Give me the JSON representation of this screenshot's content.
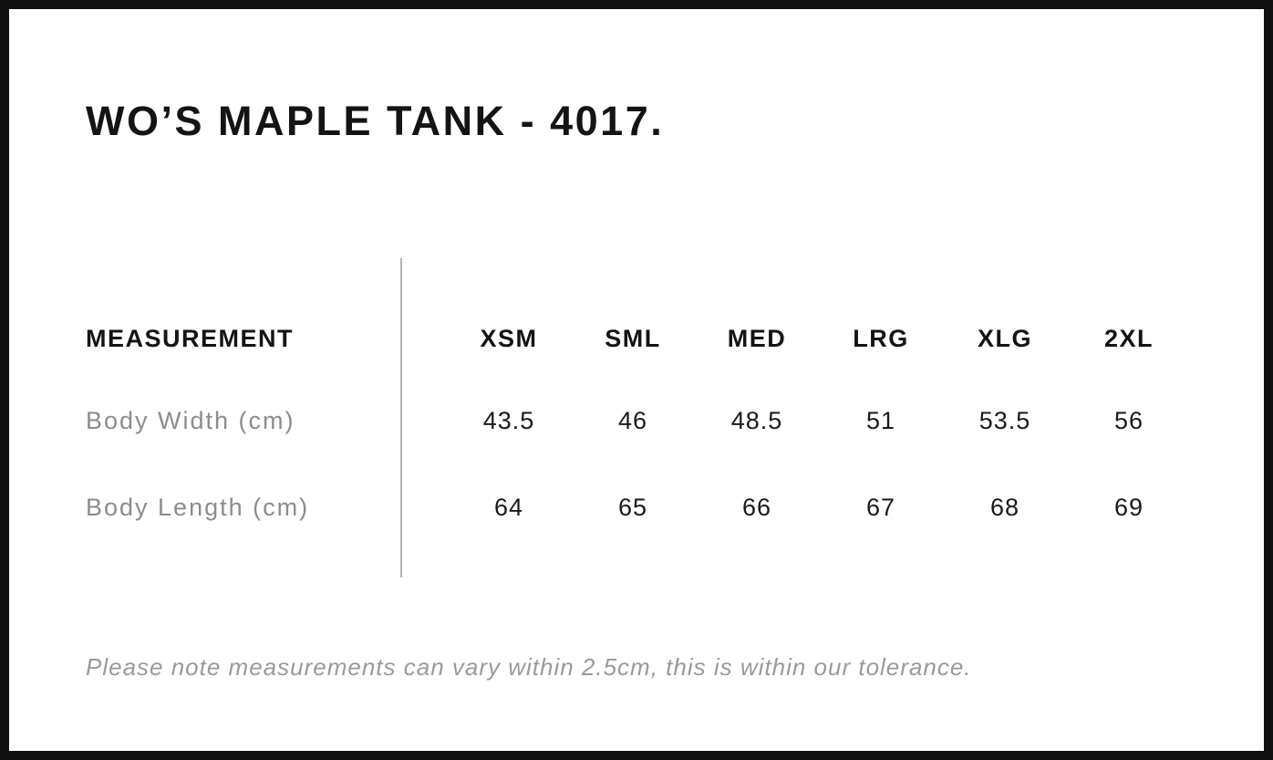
{
  "title": "WO’S MAPLE TANK - 4017.",
  "table": {
    "measurement_header": "MEASUREMENT",
    "size_headers": [
      "XSM",
      "SML",
      "MED",
      "LRG",
      "XLG",
      "2XL"
    ],
    "rows": [
      {
        "label": "Body Width (cm)",
        "values": [
          "43.5",
          "46",
          "48.5",
          "51",
          "53.5",
          "56"
        ]
      },
      {
        "label": "Body Length (cm)",
        "values": [
          "64",
          "65",
          "66",
          "67",
          "68",
          "69"
        ]
      }
    ]
  },
  "note": "Please note measurements can vary within 2.5cm, this is within our tolerance.",
  "colors": {
    "frame_border": "#101010",
    "heading_text": "#141414",
    "value_text": "#1a1a1a",
    "label_text": "#8c8c8c",
    "note_text": "#9a9a9a",
    "divider": "#b3b3b3",
    "background": "#ffffff"
  },
  "chart_data": {
    "type": "table",
    "title": "WO’S MAPLE TANK - 4017.",
    "columns": [
      "MEASUREMENT",
      "XSM",
      "SML",
      "MED",
      "LRG",
      "XLG",
      "2XL"
    ],
    "rows": [
      [
        "Body Width (cm)",
        43.5,
        46,
        48.5,
        51,
        53.5,
        56
      ],
      [
        "Body Length (cm)",
        64,
        65,
        66,
        67,
        68,
        69
      ]
    ],
    "note": "Please note measurements can vary within 2.5cm, this is within our tolerance."
  }
}
